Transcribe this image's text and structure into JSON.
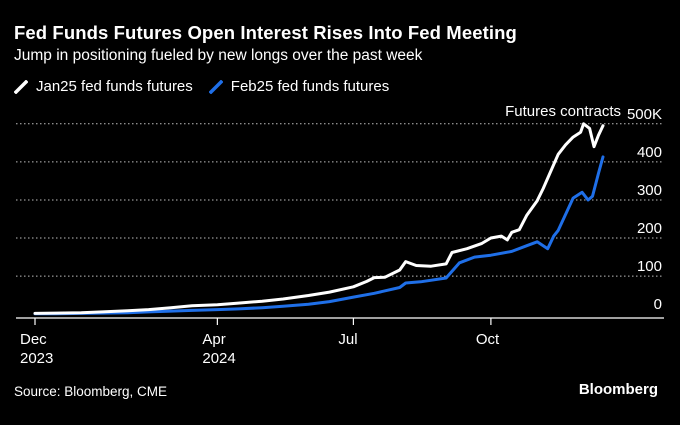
{
  "title": "Fed Funds Futures Open Interest Rises Into Fed Meeting",
  "subtitle": "Jump in positioning fueled by new longs over the past week",
  "legend": [
    {
      "name": "Jan25 fed funds futures",
      "color": "#ffffff"
    },
    {
      "name": "Feb25 fed funds futures",
      "color": "#1f6fe8"
    }
  ],
  "source": "Source: Bloomberg, CME",
  "brand": "Bloomberg",
  "chart_data": {
    "type": "line",
    "ylabel": "Futures contracts",
    "y_ticks": [
      {
        "value": 0,
        "label": "0"
      },
      {
        "value": 100,
        "label": "100"
      },
      {
        "value": 200,
        "label": "200"
      },
      {
        "value": 300,
        "label": "300"
      },
      {
        "value": 400,
        "label": "400"
      },
      {
        "value": 500,
        "label": "500K"
      }
    ],
    "ylim": [
      -10,
      510
    ],
    "xlim": [
      "2023-12-01",
      "2024-12-17"
    ],
    "x_ticks": [
      {
        "value": "2023-12-01",
        "label": "Dec",
        "sublabel": "2023"
      },
      {
        "value": "2024-04-01",
        "label": "Apr",
        "sublabel": "2024"
      },
      {
        "value": "2024-07-01",
        "label": "Jul",
        "sublabel": ""
      },
      {
        "value": "2024-10-01",
        "label": "Oct",
        "sublabel": ""
      }
    ],
    "grid": true,
    "series": [
      {
        "name": "Jan25 fed funds futures",
        "color": "#ffffff",
        "points": [
          [
            "2023-12-01",
            2
          ],
          [
            "2023-12-15",
            3
          ],
          [
            "2024-01-01",
            4
          ],
          [
            "2024-01-15",
            6
          ],
          [
            "2024-02-01",
            9
          ],
          [
            "2024-02-15",
            12
          ],
          [
            "2024-03-01",
            17
          ],
          [
            "2024-03-15",
            22
          ],
          [
            "2024-04-01",
            25
          ],
          [
            "2024-04-15",
            29
          ],
          [
            "2024-05-01",
            34
          ],
          [
            "2024-05-15",
            40
          ],
          [
            "2024-06-01",
            49
          ],
          [
            "2024-06-15",
            58
          ],
          [
            "2024-07-01",
            72
          ],
          [
            "2024-07-10",
            86
          ],
          [
            "2024-07-15",
            96
          ],
          [
            "2024-07-22",
            97
          ],
          [
            "2024-08-01",
            116
          ],
          [
            "2024-08-05",
            138
          ],
          [
            "2024-08-12",
            128
          ],
          [
            "2024-08-22",
            126
          ],
          [
            "2024-09-01",
            132
          ],
          [
            "2024-09-05",
            162
          ],
          [
            "2024-09-15",
            172
          ],
          [
            "2024-09-25",
            186
          ],
          [
            "2024-10-01",
            200
          ],
          [
            "2024-10-08",
            205
          ],
          [
            "2024-10-12",
            195
          ],
          [
            "2024-10-15",
            215
          ],
          [
            "2024-10-20",
            222
          ],
          [
            "2024-10-25",
            260
          ],
          [
            "2024-11-01",
            298
          ],
          [
            "2024-11-05",
            330
          ],
          [
            "2024-11-10",
            375
          ],
          [
            "2024-11-15",
            420
          ],
          [
            "2024-11-20",
            445
          ],
          [
            "2024-11-25",
            465
          ],
          [
            "2024-11-30",
            478
          ],
          [
            "2024-12-02",
            500
          ],
          [
            "2024-12-06",
            488
          ],
          [
            "2024-12-09",
            440
          ],
          [
            "2024-12-12",
            470
          ],
          [
            "2024-12-15",
            495
          ]
        ]
      },
      {
        "name": "Feb25 fed funds futures",
        "color": "#1f6fe8",
        "points": [
          [
            "2023-12-01",
            1
          ],
          [
            "2023-12-15",
            1
          ],
          [
            "2024-01-01",
            2
          ],
          [
            "2024-01-15",
            3
          ],
          [
            "2024-02-01",
            4
          ],
          [
            "2024-02-15",
            6
          ],
          [
            "2024-03-01",
            8
          ],
          [
            "2024-03-15",
            10
          ],
          [
            "2024-04-01",
            12
          ],
          [
            "2024-04-15",
            14
          ],
          [
            "2024-05-01",
            17
          ],
          [
            "2024-05-15",
            21
          ],
          [
            "2024-06-01",
            26
          ],
          [
            "2024-06-15",
            33
          ],
          [
            "2024-07-01",
            45
          ],
          [
            "2024-07-15",
            55
          ],
          [
            "2024-08-01",
            70
          ],
          [
            "2024-08-05",
            82
          ],
          [
            "2024-08-15",
            85
          ],
          [
            "2024-09-01",
            95
          ],
          [
            "2024-09-10",
            135
          ],
          [
            "2024-09-20",
            150
          ],
          [
            "2024-10-01",
            155
          ],
          [
            "2024-10-15",
            165
          ],
          [
            "2024-10-25",
            180
          ],
          [
            "2024-11-01",
            190
          ],
          [
            "2024-11-08",
            172
          ],
          [
            "2024-11-12",
            205
          ],
          [
            "2024-11-15",
            220
          ],
          [
            "2024-11-20",
            262
          ],
          [
            "2024-11-25",
            305
          ],
          [
            "2024-12-01",
            320
          ],
          [
            "2024-12-05",
            300
          ],
          [
            "2024-12-08",
            310
          ],
          [
            "2024-12-12",
            370
          ],
          [
            "2024-12-15",
            413
          ]
        ]
      }
    ]
  }
}
